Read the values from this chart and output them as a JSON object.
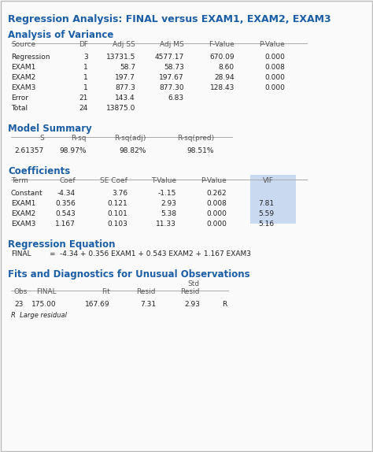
{
  "title": "Regression Analysis: FINAL versus EXAM1, EXAM2, EXAM3",
  "title_color": "#1B5EA6",
  "background_color": "#FAFAFA",
  "border_color": "#BBBBBB",
  "section_anova": "Analysis of Variance",
  "anova_headers": [
    "Source",
    "DF",
    "Adj SS",
    "Adj MS",
    "F-Value",
    "P-Value"
  ],
  "anova_rows": [
    [
      "Regression",
      "3",
      "13731.5",
      "4577.17",
      "670.09",
      "0.000"
    ],
    [
      "EXAM1",
      "1",
      "58.7",
      "58.73",
      "8.60",
      "0.008"
    ],
    [
      "EXAM2",
      "1",
      "197.7",
      "197.67",
      "28.94",
      "0.000"
    ],
    [
      "EXAM3",
      "1",
      "877.3",
      "877.30",
      "128.43",
      "0.000"
    ],
    [
      "Error",
      "21",
      "143.4",
      "6.83",
      "",
      ""
    ],
    [
      "Total",
      "24",
      "13875.0",
      "",
      "",
      ""
    ]
  ],
  "section_model": "Model Summary",
  "model_headers": [
    "S",
    "R-sq",
    "R-sq(adj)",
    "R-sq(pred)"
  ],
  "model_row": [
    "2.61357",
    "98.97%",
    "98.82%",
    "98.51%"
  ],
  "section_coef": "Coefficients",
  "coef_headers": [
    "Term",
    "Coef",
    "SE Coef",
    "T-Value",
    "P-Value",
    "VIF"
  ],
  "coef_rows": [
    [
      "Constant",
      "-4.34",
      "3.76",
      "-1.15",
      "0.262",
      ""
    ],
    [
      "EXAM1",
      "0.356",
      "0.121",
      "2.93",
      "0.008",
      "7.81"
    ],
    [
      "EXAM2",
      "0.543",
      "0.101",
      "5.38",
      "0.000",
      "5.59"
    ],
    [
      "EXAM3",
      "1.167",
      "0.103",
      "11.33",
      "0.000",
      "5.16"
    ]
  ],
  "vif_bg": "#C9D9F0",
  "section_eq": "Regression Equation",
  "eq_label": "FINAL",
  "eq_sign": "=",
  "eq_rhs": "-4.34 + 0.356 EXAM1 + 0.543 EXAM2 + 1.167 EXAM3",
  "section_diag": "Fits and Diagnostics for Unusual Observations",
  "diag_headers2": [
    "Obs",
    "FINAL",
    "Fit",
    "Resid",
    "Resid"
  ],
  "diag_std_label": "Std",
  "diag_rows": [
    [
      "23",
      "175.00",
      "167.69",
      "7.31",
      "2.93",
      "R"
    ]
  ],
  "diag_note": "R  Large residual",
  "section_color": "#1B5EA6",
  "header_color": "#555555",
  "text_color": "#222222",
  "line_color": "#999999"
}
